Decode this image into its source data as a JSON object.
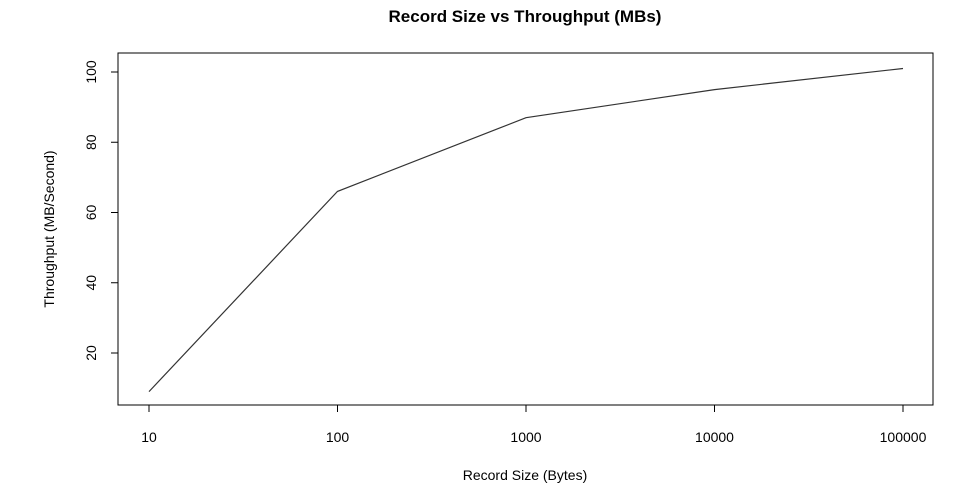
{
  "chart_data": {
    "type": "line",
    "title": "Record Size vs Throughput (MBs)",
    "xlabel": "Record Size (Bytes)",
    "ylabel": "Throughput (MB/Second)",
    "x_scale": "log10",
    "xlim": [
      10,
      100000
    ],
    "ylim": [
      5.5,
      104
    ],
    "x_ticks": [
      10,
      100,
      1000,
      10000,
      100000
    ],
    "x_tick_labels": [
      "10",
      "100",
      "1000",
      "10000",
      "100000"
    ],
    "y_ticks": [
      20,
      40,
      60,
      80,
      100
    ],
    "y_tick_labels": [
      "20",
      "40",
      "60",
      "80",
      "100"
    ],
    "grid": false,
    "legend": "none",
    "series": [
      {
        "x": [
          10,
          100,
          1000,
          10000,
          100000
        ],
        "y": [
          9,
          66,
          87,
          95,
          101
        ],
        "color": "#333333"
      }
    ]
  }
}
